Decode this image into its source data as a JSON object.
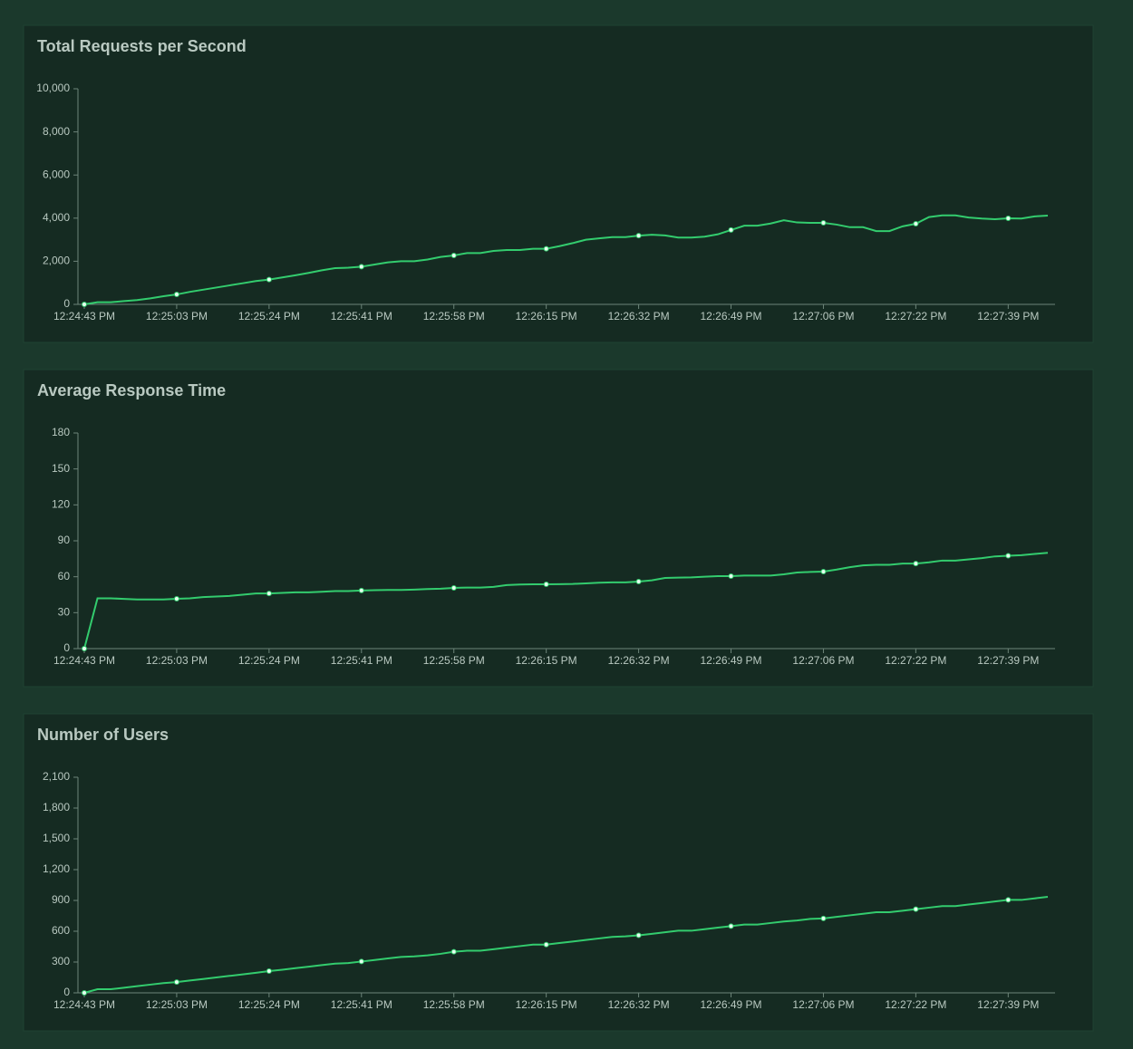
{
  "chart_data": [
    {
      "type": "line",
      "title": "Total Requests per Second",
      "categories": [
        "12:24:43 PM",
        null,
        null,
        null,
        null,
        null,
        null,
        "12:25:03 PM",
        null,
        null,
        null,
        null,
        null,
        null,
        "12:25:24 PM",
        null,
        null,
        null,
        null,
        null,
        null,
        "12:25:41 PM",
        null,
        null,
        null,
        null,
        null,
        null,
        "12:25:58 PM",
        null,
        null,
        null,
        null,
        null,
        null,
        "12:26:15 PM",
        null,
        null,
        null,
        null,
        null,
        null,
        "12:26:32 PM",
        null,
        null,
        null,
        null,
        null,
        null,
        "12:26:49 PM",
        null,
        null,
        null,
        null,
        null,
        null,
        "12:27:06 PM",
        null,
        null,
        null,
        null,
        null,
        null,
        "12:27:22 PM",
        null,
        null,
        null,
        null,
        null,
        null,
        "12:27:39 PM",
        null,
        null,
        null
      ],
      "values": [
        0,
        100,
        100,
        150,
        200,
        280,
        380,
        460,
        580,
        680,
        780,
        880,
        980,
        1080,
        1150,
        1250,
        1350,
        1460,
        1580,
        1680,
        1700,
        1750,
        1850,
        1950,
        2000,
        2000,
        2080,
        2200,
        2270,
        2380,
        2380,
        2480,
        2520,
        2520,
        2580,
        2580,
        2700,
        2840,
        3000,
        3060,
        3120,
        3120,
        3190,
        3230,
        3200,
        3100,
        3100,
        3140,
        3250,
        3450,
        3650,
        3650,
        3750,
        3900,
        3800,
        3780,
        3780,
        3700,
        3580,
        3580,
        3400,
        3400,
        3620,
        3740,
        4050,
        4130,
        4130,
        4030,
        3980,
        3950,
        3990,
        3980,
        4080,
        4120
      ],
      "color": "#33cc6e",
      "ylim": [
        0,
        10000
      ],
      "yticks": [
        0,
        {
          "value": 2000,
          "label": "2,000"
        },
        {
          "value": 4000,
          "label": "4,000"
        },
        {
          "value": 6000,
          "label": "6,000"
        },
        {
          "value": 8000,
          "label": "8,000"
        },
        {
          "value": 10000,
          "label": "10,000"
        }
      ]
    },
    {
      "type": "line",
      "title": "Average Response Time",
      "categories": [
        "12:24:43 PM",
        null,
        null,
        null,
        null,
        null,
        null,
        "12:25:03 PM",
        null,
        null,
        null,
        null,
        null,
        null,
        "12:25:24 PM",
        null,
        null,
        null,
        null,
        null,
        null,
        "12:25:41 PM",
        null,
        null,
        null,
        null,
        null,
        null,
        "12:25:58 PM",
        null,
        null,
        null,
        null,
        null,
        null,
        "12:26:15 PM",
        null,
        null,
        null,
        null,
        null,
        null,
        "12:26:32 PM",
        null,
        null,
        null,
        null,
        null,
        null,
        "12:26:49 PM",
        null,
        null,
        null,
        null,
        null,
        null,
        "12:27:06 PM",
        null,
        null,
        null,
        null,
        null,
        null,
        "12:27:22 PM",
        null,
        null,
        null,
        null,
        null,
        null,
        "12:27:39 PM",
        null,
        null,
        null
      ],
      "values": [
        0,
        42,
        42,
        41.5,
        41,
        41,
        41,
        41.6,
        42,
        43,
        43.5,
        44,
        45,
        46,
        46,
        46.5,
        47,
        47,
        47.5,
        48,
        48,
        48.5,
        48.8,
        49,
        49,
        49.3,
        49.7,
        50,
        50.7,
        51,
        51,
        51.5,
        53,
        53.5,
        53.7,
        53.7,
        53.8,
        54,
        54.5,
        55,
        55.3,
        55.3,
        56,
        57,
        59,
        59.3,
        59.5,
        60,
        60.5,
        60.5,
        61,
        61,
        61,
        62,
        63.5,
        64,
        64.3,
        66,
        68,
        69.5,
        70,
        70,
        71,
        71,
        72,
        73.5,
        73.5,
        74.5,
        75.5,
        77,
        77.5,
        78,
        79,
        80
      ],
      "color": "#33cc6e",
      "ylim": [
        0,
        180
      ],
      "yticks": [
        0,
        30,
        60,
        90,
        120,
        150,
        180
      ]
    },
    {
      "type": "line",
      "title": "Number of Users",
      "categories": [
        "12:24:43 PM",
        null,
        null,
        null,
        null,
        null,
        null,
        "12:25:03 PM",
        null,
        null,
        null,
        null,
        null,
        null,
        "12:25:24 PM",
        null,
        null,
        null,
        null,
        null,
        null,
        "12:25:41 PM",
        null,
        null,
        null,
        null,
        null,
        null,
        "12:25:58 PM",
        null,
        null,
        null,
        null,
        null,
        null,
        "12:26:15 PM",
        null,
        null,
        null,
        null,
        null,
        null,
        "12:26:32 PM",
        null,
        null,
        null,
        null,
        null,
        null,
        "12:26:49 PM",
        null,
        null,
        null,
        null,
        null,
        null,
        "12:27:06 PM",
        null,
        null,
        null,
        null,
        null,
        null,
        "12:27:22 PM",
        null,
        null,
        null,
        null,
        null,
        null,
        "12:27:39 PM",
        null,
        null,
        null
      ],
      "values": [
        0,
        35,
        35,
        50,
        65,
        80,
        95,
        105,
        120,
        135,
        150,
        165,
        180,
        195,
        212,
        225,
        240,
        255,
        270,
        285,
        290,
        305,
        320,
        335,
        350,
        355,
        365,
        380,
        400,
        410,
        410,
        425,
        440,
        455,
        470,
        470,
        485,
        500,
        515,
        530,
        545,
        550,
        560,
        575,
        590,
        605,
        605,
        620,
        635,
        650,
        665,
        665,
        680,
        695,
        705,
        720,
        725,
        740,
        755,
        770,
        785,
        785,
        800,
        815,
        830,
        845,
        845,
        860,
        875,
        890,
        905,
        905,
        920,
        935
      ],
      "color": "#33cc6e",
      "ylim": [
        0,
        2100
      ],
      "yticks": [
        0,
        300,
        600,
        900,
        {
          "value": 1200,
          "label": "1,200"
        },
        {
          "value": 1500,
          "label": "1,500"
        },
        {
          "value": 1800,
          "label": "1,800"
        },
        {
          "value": 2100,
          "label": "2,100"
        }
      ]
    }
  ]
}
